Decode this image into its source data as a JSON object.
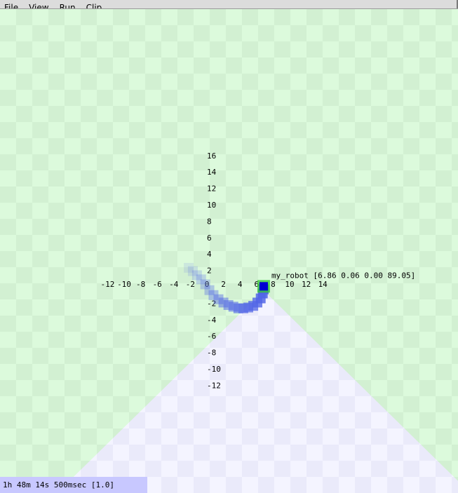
{
  "menubar": {
    "items": [
      {
        "label": "File",
        "mnemonic": "F"
      },
      {
        "label": "View",
        "mnemonic": "V"
      },
      {
        "label": "Run",
        "mnemonic": "R"
      },
      {
        "label": "Clip",
        "mnemonic": "C"
      }
    ]
  },
  "world": {
    "colors": {
      "floor_light": "#dcfadc",
      "floor_dark": "#d2f0d2",
      "fov_light": "#f4f4ff",
      "fov_dark": "#eaeafa",
      "trail": "#5064e6",
      "robot_body": "#0000d2",
      "robot_border": "#32c832"
    },
    "x_ticks": [
      -12,
      -10,
      -8,
      -6,
      -4,
      -2,
      0,
      2,
      4,
      6,
      8,
      10,
      12,
      14
    ],
    "y_ticks": [
      16,
      14,
      12,
      10,
      8,
      6,
      4,
      2,
      -2,
      -4,
      -6,
      -8,
      -10,
      -12
    ],
    "robot": {
      "name": "my_robot",
      "pose_text": "[6.86 0.06 0.00 89.05]",
      "x": 6.86,
      "y": 0.06,
      "z": 0.0,
      "heading_deg": 89.05
    },
    "trail_points": [
      [
        -2.2,
        2.3
      ],
      [
        -1.7,
        1.9
      ],
      [
        -1.2,
        1.4
      ],
      [
        -0.7,
        0.9
      ],
      [
        -0.2,
        0.3
      ],
      [
        0.3,
        -0.4
      ],
      [
        0.8,
        -1.0
      ],
      [
        1.4,
        -1.5
      ],
      [
        2.0,
        -1.9
      ],
      [
        2.6,
        -2.2
      ],
      [
        3.2,
        -2.4
      ],
      [
        3.8,
        -2.6
      ],
      [
        4.4,
        -2.6
      ],
      [
        5.0,
        -2.5
      ],
      [
        5.6,
        -2.3
      ],
      [
        6.1,
        -1.9
      ],
      [
        6.5,
        -1.4
      ],
      [
        6.75,
        -0.8
      ],
      [
        6.86,
        -0.3
      ]
    ]
  },
  "status": {
    "text": "1h 48m 14s 500msec [1.0]"
  }
}
